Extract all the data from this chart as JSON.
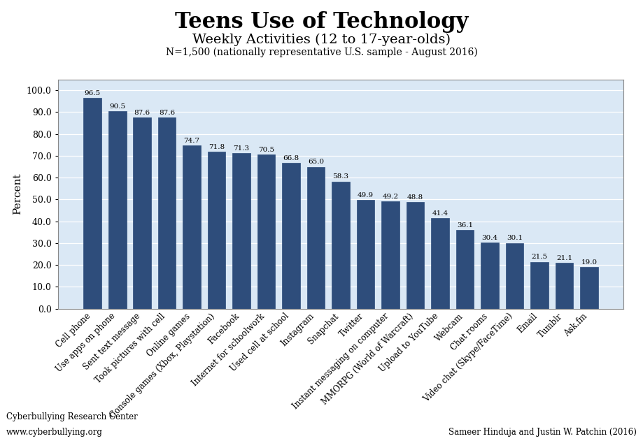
{
  "title": "Teens Use of Technology",
  "subtitle": "Weekly Activities (12 to 17-year-olds)",
  "subtitle2": "N=1,500 (nationally representative U.S. sample - August 2016)",
  "ylabel": "Percent",
  "categories": [
    "Cell phone",
    "Use apps on phone",
    "Sent text message",
    "Took pictures with cell",
    "Online games",
    "Console games (Xbox, Playstation)",
    "Facebook",
    "Internet for schoolwork",
    "Used cell at school",
    "Instagram",
    "Snapchat",
    "Twitter",
    "Instant messaging on computer",
    "MMORPG (World of Warcraft)",
    "Upload to YouTube",
    "Webcam",
    "Chat rooms",
    "Video chat (Skype/FaceTime)",
    "Email",
    "Tumblr",
    "Ask.fm"
  ],
  "values": [
    96.5,
    90.5,
    87.6,
    87.6,
    74.7,
    71.8,
    71.3,
    70.5,
    66.8,
    65.0,
    58.3,
    49.9,
    49.2,
    48.8,
    41.4,
    36.1,
    30.4,
    30.1,
    21.5,
    21.1,
    19.0
  ],
  "bar_color": "#2E4D7B",
  "plot_bg_color": "#DAE8F5",
  "fig_bg_color": "#FFFFFF",
  "ylim": [
    0,
    105
  ],
  "yticks": [
    0.0,
    10.0,
    20.0,
    30.0,
    40.0,
    50.0,
    60.0,
    70.0,
    80.0,
    90.0,
    100.0
  ],
  "footer_left1": "Cyberbullying Research Center",
  "footer_left2": "www.cyberbullying.org",
  "footer_right": "Sameer Hinduja and Justin W. Patchin (2016)",
  "title_fontsize": 22,
  "subtitle_fontsize": 14,
  "subtitle2_fontsize": 10,
  "ylabel_fontsize": 11,
  "ytick_fontsize": 9,
  "xtick_fontsize": 8.5,
  "bar_label_fontsize": 7.5,
  "footer_fontsize": 8.5
}
